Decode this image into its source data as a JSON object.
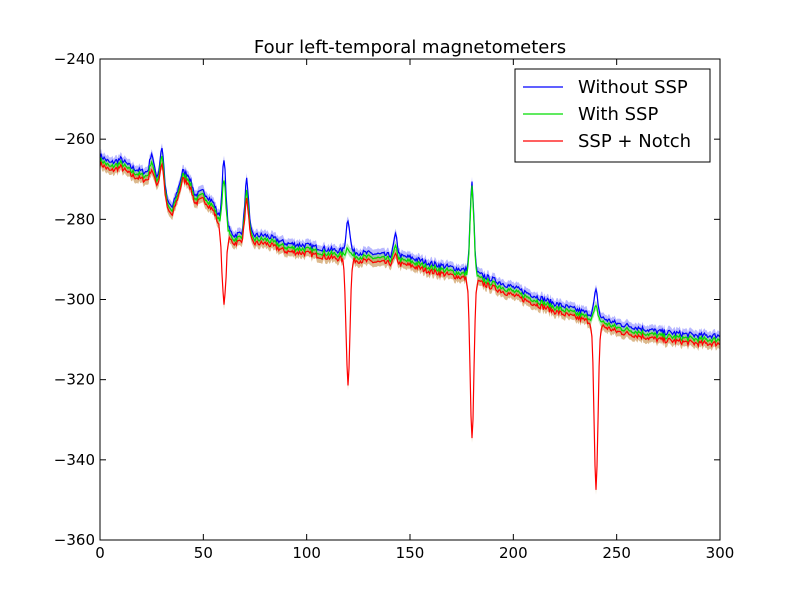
{
  "chart_data": {
    "type": "line",
    "title": "Four left-temporal magnetometers",
    "xlabel": "",
    "ylabel": "",
    "xlim": [
      0,
      300
    ],
    "ylim": [
      -360,
      -240
    ],
    "x_ticks": [
      0,
      50,
      100,
      150,
      200,
      250,
      300
    ],
    "y_ticks": [
      -360,
      -340,
      -320,
      -300,
      -280,
      -260,
      -240
    ],
    "grid": false,
    "legend_position": "top-right",
    "series": [
      {
        "name": "Without SSP",
        "color": "#0000ff",
        "band_color": "#8080ff",
        "offset": 0,
        "peak_heights": {
          "25": 5,
          "30": 8,
          "60": 16,
          "71": 13,
          "120": 8,
          "143": 5,
          "180": 22,
          "240": 6
        }
      },
      {
        "name": "With SSP",
        "color": "#00dd00",
        "band_color": "#80d080",
        "offset": -1,
        "peak_heights": {
          "25": 4,
          "30": 7,
          "60": 12,
          "71": 11,
          "120": 2,
          "143": 3,
          "180": 22,
          "240": 3
        }
      },
      {
        "name": "SSP + Notch",
        "color": "#ff0000",
        "band_color": "#c08030",
        "offset": -2,
        "peak_heights": {
          "25": 3,
          "30": 6,
          "60": -18,
          "71": 10,
          "120": -31,
          "143": 2,
          "180": -40,
          "240": -42
        }
      }
    ],
    "baseline": [
      [
        0,
        -264
      ],
      [
        5,
        -266
      ],
      [
        10,
        -265
      ],
      [
        15,
        -267
      ],
      [
        20,
        -268
      ],
      [
        25,
        -268.5
      ],
      [
        30,
        -270
      ],
      [
        33,
        -276
      ],
      [
        35,
        -277
      ],
      [
        38,
        -272
      ],
      [
        40,
        -268
      ],
      [
        43,
        -269
      ],
      [
        46,
        -274
      ],
      [
        50,
        -273
      ],
      [
        55,
        -276
      ],
      [
        58,
        -280
      ],
      [
        60,
        -281.5
      ],
      [
        62,
        -282.5
      ],
      [
        65,
        -284
      ],
      [
        70,
        -283
      ],
      [
        75,
        -284
      ],
      [
        80,
        -284
      ],
      [
        90,
        -286
      ],
      [
        100,
        -286.5
      ],
      [
        110,
        -287.5
      ],
      [
        120,
        -288
      ],
      [
        130,
        -288.5
      ],
      [
        140,
        -289
      ],
      [
        150,
        -289.5
      ],
      [
        160,
        -291
      ],
      [
        170,
        -292
      ],
      [
        180,
        -293
      ],
      [
        190,
        -295
      ],
      [
        200,
        -297
      ],
      [
        210,
        -299
      ],
      [
        220,
        -301
      ],
      [
        230,
        -302.5
      ],
      [
        240,
        -304
      ],
      [
        250,
        -306
      ],
      [
        260,
        -307
      ],
      [
        270,
        -308
      ],
      [
        280,
        -308.5
      ],
      [
        290,
        -309
      ],
      [
        300,
        -309
      ]
    ]
  }
}
